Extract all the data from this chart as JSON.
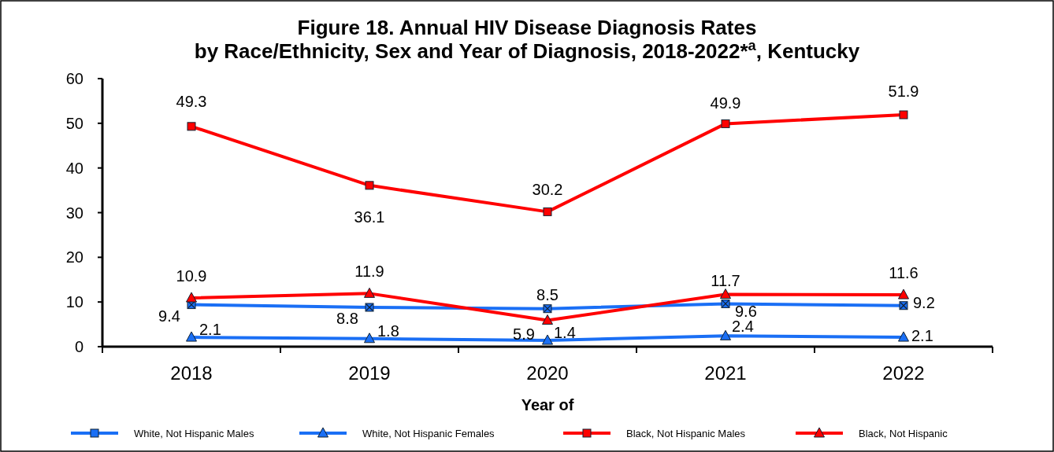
{
  "chart_data": {
    "type": "line",
    "title": "Figure 18. Annual HIV Disease Diagnosis Rates\nby Race/Ethnicity, Sex and Year of Diagnosis, 2018-2022*$^{a}$, Kentucky",
    "xlabel": "Year of",
    "categories": [
      "2018",
      "2019",
      "2020",
      "2021",
      "2022"
    ],
    "series": [
      {
        "name": "White, Not Hispanic Males",
        "color": "#1a6ff5",
        "marker": "square",
        "values": [
          9.4,
          8.8,
          8.5,
          9.6,
          9.2
        ]
      },
      {
        "name": "White, Not Hispanic Females",
        "color": "#1a6ff5",
        "marker": "triangle",
        "values": [
          2.1,
          1.8,
          1.4,
          2.4,
          2.1
        ]
      },
      {
        "name": "Black, Not Hispanic Males",
        "color": "#ff0000",
        "marker": "square",
        "values": [
          49.3,
          36.1,
          30.2,
          49.9,
          51.9
        ]
      },
      {
        "name": "Black, Not Hispanic",
        "color": "#ff0000",
        "marker": "triangle",
        "values": [
          10.9,
          11.9,
          5.9,
          11.7,
          11.6
        ]
      }
    ],
    "ylim": [
      0,
      60
    ],
    "yticks": [
      0,
      10,
      20,
      30,
      40,
      50,
      60
    ],
    "grid": false,
    "legend": "bottom",
    "data_labels": true
  }
}
